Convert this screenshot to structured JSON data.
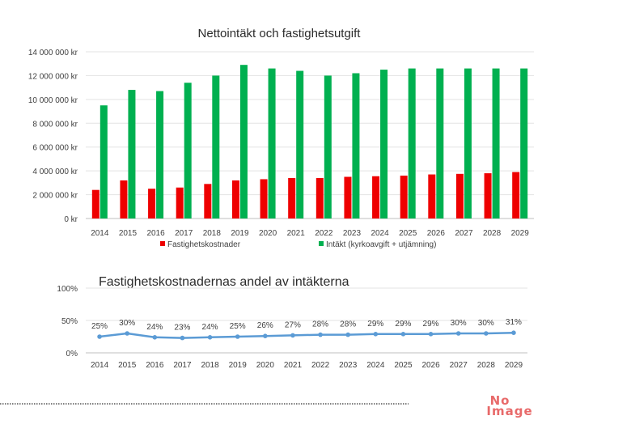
{
  "chart_data": [
    {
      "type": "bar",
      "title": "Nettointäkt och fastighetsutgift",
      "categories": [
        "2014",
        "2015",
        "2016",
        "2017",
        "2018",
        "2019",
        "2020",
        "2021",
        "2022",
        "2023",
        "2024",
        "2025",
        "2026",
        "2027",
        "2028",
        "2029"
      ],
      "series": [
        {
          "name": "Fastighetskostnader",
          "color": "#ee0000",
          "values": [
            2400000,
            3200000,
            2500000,
            2600000,
            2900000,
            3200000,
            3300000,
            3400000,
            3400000,
            3500000,
            3550000,
            3600000,
            3700000,
            3750000,
            3800000,
            3900000
          ]
        },
        {
          "name": "Intäkt (kyrkoavgift + utjämning)",
          "color": "#00b050",
          "values": [
            9500000,
            10800000,
            10700000,
            11400000,
            12000000,
            12900000,
            12600000,
            12400000,
            12000000,
            12200000,
            12500000,
            12600000,
            12600000,
            12600000,
            12600000,
            12600000
          ]
        }
      ],
      "yticks": [
        "0 kr",
        "2 000 000 kr",
        "4 000 000 kr",
        "6 000 000 kr",
        "8 000 000 kr",
        "10 000 000 kr",
        "12 000 000 kr",
        "14 000 000 kr"
      ],
      "ylim": [
        0,
        14000000
      ],
      "legend_position": "bottom"
    },
    {
      "type": "line",
      "title": "Fastighetskostnadernas andel av intäkterna",
      "categories": [
        "2014",
        "2015",
        "2016",
        "2017",
        "2018",
        "2019",
        "2020",
        "2021",
        "2022",
        "2023",
        "2024",
        "2025",
        "2026",
        "2027",
        "2028",
        "2029"
      ],
      "values": [
        25,
        30,
        24,
        23,
        24,
        25,
        26,
        27,
        28,
        28,
        29,
        29,
        29,
        30,
        30,
        31
      ],
      "data_labels": [
        "25%",
        "30%",
        "24%",
        "23%",
        "24%",
        "25%",
        "26%",
        "27%",
        "28%",
        "28%",
        "29%",
        "29%",
        "29%",
        "30%",
        "30%",
        "31%"
      ],
      "yticks": [
        "0%",
        "50%",
        "100%"
      ],
      "ylim": [
        0,
        100
      ],
      "color": "#5b9bd5"
    }
  ],
  "watermark": {
    "line1": "No",
    "line2": "Image"
  }
}
